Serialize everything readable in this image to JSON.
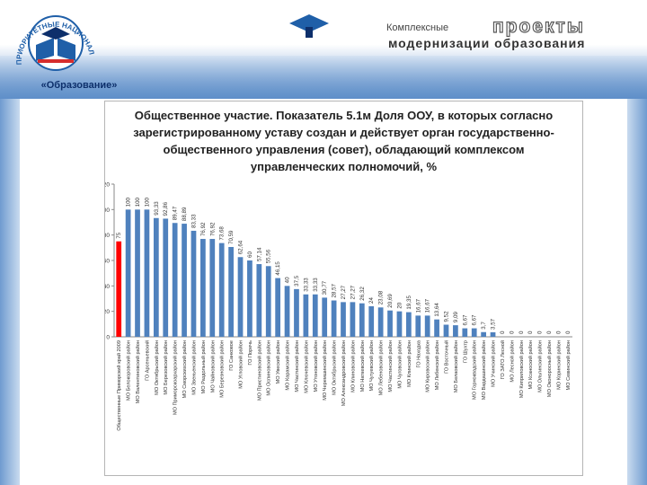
{
  "header": {
    "emblem_caption": "«Образование»",
    "emblem_ring_text": "ПРИОРИТЕТНЫЕ НАЦИОНАЛЬНЫЕ ПРОЕКТЫ",
    "project_line1": "Комплексные",
    "project_word": "проекты",
    "project_line2": "модернизации образования",
    "colors": {
      "brand_blue": "#1f5fa8",
      "brand_dark": "#0d2f6b",
      "band": "#5f8fc9"
    },
    "icons": [
      "book-emblem-icon",
      "graduation-cap-icon"
    ]
  },
  "chart_data": {
    "type": "bar",
    "title": "Общественное участие. Показатель 5.1м Доля ООУ, в которых согласно зарегистрированному уставу создан и действует орган государственно-общественного управления (совет), обладающий комплексом управленческих полномочий, %",
    "xlabel": "",
    "ylabel": "",
    "ylim": [
      0,
      120
    ],
    "yticks": [
      0,
      20,
      40,
      60,
      80,
      100,
      120
    ],
    "grid": false,
    "legend": "none",
    "colors": {
      "default": "#4f81bd",
      "highlight": "#ff0000"
    },
    "highlight_index": 0,
    "categories": [
      "Общественные Приморский край 2009",
      "МО Белокоровский район",
      "МО Валентиновский район",
      "ГО Арсеньевский",
      "МО Октябрьский район",
      "МО Березовский район",
      "МО Приморскоархарский район",
      "МО Сморскихский район",
      "МО Звеньенский район",
      "МО Раздольный район",
      "МО Чайновский район",
      "МО Березновский район",
      "ГО Санковое",
      "МО Угловский район",
      "ГО Поречь",
      "МО Пристиновский район",
      "МО Оспиновский район",
      "МО Увеский район",
      "МО Карамский район",
      "МО Частинский район",
      "МО Ключевский район",
      "МО Утоновский район",
      "МО Черемшинский район",
      "МО Октябрьский район",
      "МО Александровский район",
      "МО Клиновский район",
      "МО Наткевский район",
      "МО Чугуевский район",
      "МО Лебеновский район",
      "МО Частинский район",
      "МО Чуговский район",
      "МО Клинский район",
      "ГО Находка",
      "МО Кировоский район",
      "МО Лебенский район",
      "ГО Восточный",
      "МО Белаовский район",
      "ГО Шухтр",
      "МО Горноквадский район",
      "МО Вардашинский район",
      "МО Учинский район",
      "ГО ЗАТО Лесной",
      "МО Лесной район",
      "МО Киприловский район",
      "МО Ксаноский район",
      "МО Ольгинский район",
      "МО Оконоросный район",
      "МО Коринский район",
      "МО Севинский район"
    ],
    "values": [
      75,
      100,
      100,
      100,
      93.33,
      92.86,
      89.47,
      88.89,
      83.33,
      76.92,
      76.92,
      73.68,
      70.59,
      62.64,
      60,
      57.14,
      55.56,
      46.15,
      40,
      37.5,
      33.33,
      33.33,
      30.77,
      28.57,
      27.27,
      27.27,
      26.32,
      24,
      23.08,
      20.69,
      20,
      19.35,
      16.67,
      16.67,
      13.64,
      9.52,
      9.09,
      6.67,
      6.67,
      3.7,
      3.57,
      0,
      0,
      0,
      0,
      0,
      0,
      0,
      0
    ],
    "value_labels": [
      "75",
      "100",
      "100",
      "100",
      "93,33",
      "92,86",
      "89,47",
      "88,89",
      "83,33",
      "76,92",
      "76,92",
      "73,68",
      "70,59",
      "62,64",
      "60",
      "57,14",
      "55,56",
      "46,15",
      "40",
      "37,5",
      "33,33",
      "33,33",
      "30,77",
      "28,57",
      "27,27",
      "27,27",
      "26,32",
      "24",
      "23,08",
      "20,69",
      "20",
      "19,35",
      "16,67",
      "16,67",
      "13,64",
      "9,52",
      "9,09",
      "6,67",
      "6,67",
      "3,7",
      "3,57",
      "0",
      "0",
      "0",
      "0",
      "0",
      "0",
      "0",
      "0"
    ]
  }
}
